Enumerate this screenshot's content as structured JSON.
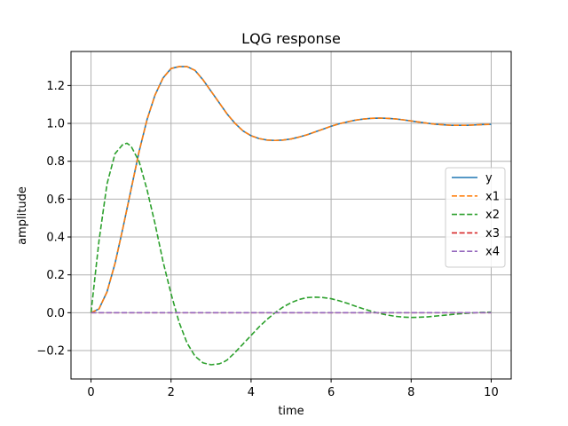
{
  "chart_data": {
    "type": "line",
    "title": "LQG response",
    "xlabel": "time",
    "ylabel": "amplitude",
    "xlim": [
      -0.5,
      10.5
    ],
    "ylim": [
      -0.35,
      1.38
    ],
    "xticks": [
      0,
      2,
      4,
      6,
      8,
      10
    ],
    "xtick_labels": [
      "0",
      "2",
      "4",
      "6",
      "8",
      "10"
    ],
    "yticks": [
      -0.2,
      0.0,
      0.2,
      0.4,
      0.6,
      0.8,
      1.0,
      1.2
    ],
    "ytick_labels": [
      "−0.2",
      "0.0",
      "0.2",
      "0.4",
      "0.6",
      "0.8",
      "1.0",
      "1.2"
    ],
    "grid": true,
    "legend_position": "center-right",
    "series": [
      {
        "name": "y",
        "color": "#1f77b4",
        "style": "solid",
        "x": [
          0,
          0.2,
          0.4,
          0.6,
          0.8,
          1.0,
          1.2,
          1.4,
          1.6,
          1.8,
          2.0,
          2.2,
          2.4,
          2.6,
          2.8,
          3.0,
          3.2,
          3.4,
          3.6,
          3.8,
          4.0,
          4.2,
          4.4,
          4.6,
          4.8,
          5.0,
          5.2,
          5.4,
          5.6,
          5.8,
          6.0,
          6.2,
          6.4,
          6.6,
          6.8,
          7.0,
          7.2,
          7.4,
          7.6,
          7.8,
          8.0,
          8.2,
          8.4,
          8.6,
          8.8,
          9.0,
          9.2,
          9.4,
          9.6,
          9.8,
          10.0
        ],
        "values": [
          0.0,
          0.02,
          0.11,
          0.26,
          0.45,
          0.65,
          0.85,
          1.02,
          1.15,
          1.24,
          1.29,
          1.3,
          1.3,
          1.28,
          1.23,
          1.17,
          1.11,
          1.05,
          1.0,
          0.96,
          0.935,
          0.92,
          0.912,
          0.91,
          0.912,
          0.918,
          0.928,
          0.94,
          0.955,
          0.97,
          0.985,
          0.998,
          1.008,
          1.017,
          1.023,
          1.027,
          1.028,
          1.027,
          1.024,
          1.019,
          1.013,
          1.007,
          1.001,
          0.996,
          0.993,
          0.99,
          0.99,
          0.99,
          0.992,
          0.994,
          0.995
        ]
      },
      {
        "name": "x1",
        "color": "#ff7f0e",
        "style": "dashed",
        "x": [
          0,
          0.2,
          0.4,
          0.6,
          0.8,
          1.0,
          1.2,
          1.4,
          1.6,
          1.8,
          2.0,
          2.2,
          2.4,
          2.6,
          2.8,
          3.0,
          3.2,
          3.4,
          3.6,
          3.8,
          4.0,
          4.2,
          4.4,
          4.6,
          4.8,
          5.0,
          5.2,
          5.4,
          5.6,
          5.8,
          6.0,
          6.2,
          6.4,
          6.6,
          6.8,
          7.0,
          7.2,
          7.4,
          7.6,
          7.8,
          8.0,
          8.2,
          8.4,
          8.6,
          8.8,
          9.0,
          9.2,
          9.4,
          9.6,
          9.8,
          10.0
        ],
        "values": [
          0.0,
          0.02,
          0.11,
          0.26,
          0.45,
          0.65,
          0.85,
          1.02,
          1.15,
          1.24,
          1.29,
          1.3,
          1.3,
          1.28,
          1.23,
          1.17,
          1.11,
          1.05,
          1.0,
          0.96,
          0.935,
          0.92,
          0.912,
          0.91,
          0.912,
          0.918,
          0.928,
          0.94,
          0.955,
          0.97,
          0.985,
          0.998,
          1.008,
          1.017,
          1.023,
          1.027,
          1.028,
          1.027,
          1.024,
          1.019,
          1.013,
          1.007,
          1.001,
          0.996,
          0.993,
          0.99,
          0.99,
          0.99,
          0.992,
          0.994,
          0.995
        ]
      },
      {
        "name": "x2",
        "color": "#2ca02c",
        "style": "dashed",
        "x": [
          0,
          0.2,
          0.4,
          0.6,
          0.8,
          0.9,
          1.0,
          1.2,
          1.4,
          1.6,
          1.8,
          2.0,
          2.2,
          2.4,
          2.6,
          2.8,
          3.0,
          3.2,
          3.3,
          3.4,
          3.6,
          3.8,
          4.0,
          4.2,
          4.4,
          4.6,
          4.8,
          5.0,
          5.2,
          5.4,
          5.6,
          5.8,
          6.0,
          6.2,
          6.4,
          6.6,
          6.8,
          7.0,
          7.2,
          7.4,
          7.6,
          7.8,
          8.0,
          8.2,
          8.4,
          8.6,
          8.8,
          9.0,
          9.2,
          9.4,
          9.6,
          9.8,
          10.0
        ],
        "values": [
          0.0,
          0.38,
          0.68,
          0.84,
          0.89,
          0.895,
          0.88,
          0.8,
          0.65,
          0.47,
          0.27,
          0.1,
          -0.05,
          -0.16,
          -0.23,
          -0.265,
          -0.275,
          -0.27,
          -0.262,
          -0.25,
          -0.21,
          -0.165,
          -0.12,
          -0.075,
          -0.035,
          0.0,
          0.03,
          0.053,
          0.07,
          0.08,
          0.082,
          0.08,
          0.074,
          0.063,
          0.05,
          0.035,
          0.021,
          0.008,
          -0.003,
          -0.012,
          -0.019,
          -0.023,
          -0.025,
          -0.024,
          -0.022,
          -0.018,
          -0.014,
          -0.01,
          -0.006,
          -0.003,
          0.0,
          0.002,
          0.003
        ]
      },
      {
        "name": "x3",
        "color": "#d62728",
        "style": "dashed",
        "x": [
          0,
          10
        ],
        "values": [
          0.0,
          0.0
        ]
      },
      {
        "name": "x4",
        "color": "#9467bd",
        "style": "dashed",
        "x": [
          0,
          10
        ],
        "values": [
          0.0,
          0.0
        ]
      }
    ]
  }
}
